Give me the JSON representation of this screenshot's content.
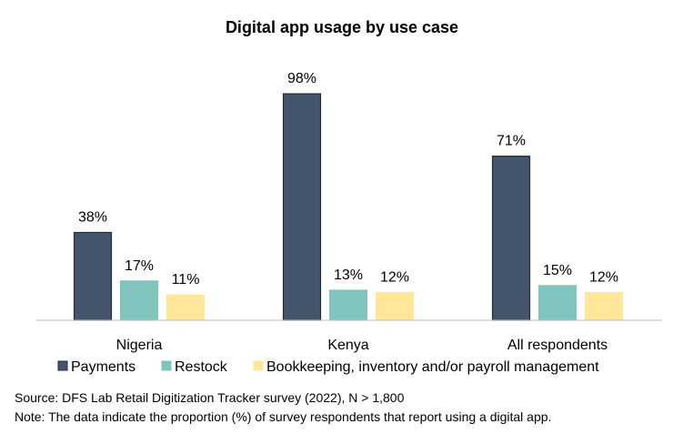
{
  "chart_data": {
    "type": "bar",
    "title": "Digital app usage by use case",
    "categories": [
      "Nigeria",
      "Kenya",
      "All respondents"
    ],
    "series": [
      {
        "name": "Payments",
        "values": [
          38,
          98,
          71
        ],
        "labels": [
          "38%",
          "98%",
          "71%"
        ],
        "color": "#44546A",
        "stroke": "#1F2D40"
      },
      {
        "name": "Restock",
        "values": [
          17,
          13,
          15
        ],
        "labels": [
          "17%",
          "13%",
          "15%"
        ],
        "color": "#7FC4BD",
        "stroke": "#7FC4BD"
      },
      {
        "name": "Bookkeeping, inventory and/or payroll management",
        "values": [
          11,
          12,
          12
        ],
        "labels": [
          "11%",
          "12%",
          "12%"
        ],
        "color": "#FFE699",
        "stroke": "#FFE699"
      }
    ],
    "ylim": [
      0,
      100
    ],
    "grid": false,
    "legend_position": "bottom"
  },
  "notes": {
    "source": "Source: DFS Lab Retail Digitization Tracker survey (2022), N > 1,800",
    "note": "Note: The data indicate the proportion (%) of survey respondents that report using a digital app."
  }
}
